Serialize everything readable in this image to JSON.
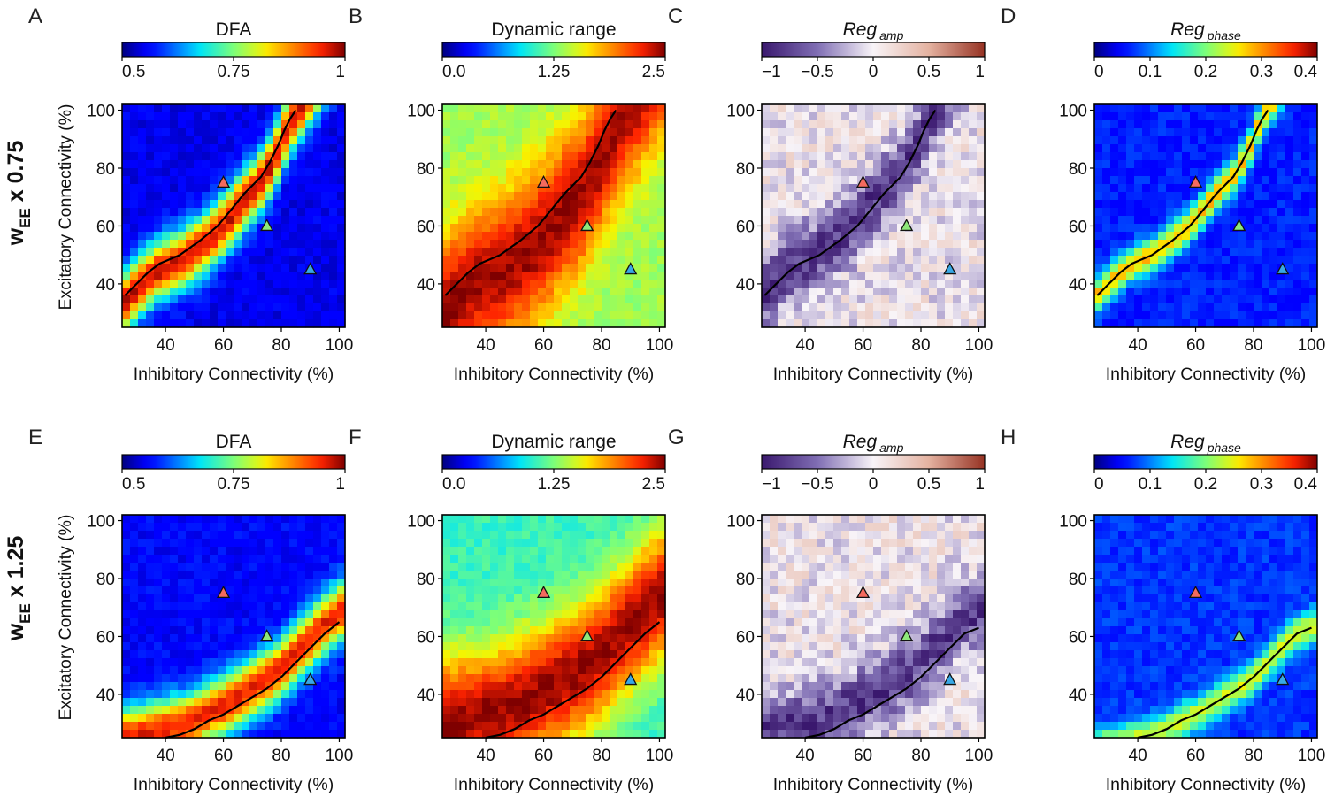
{
  "row_labels": [
    {
      "main": "w",
      "sub": "EE",
      "suffix": " x 0.75"
    },
    {
      "main": "w",
      "sub": "EE",
      "suffix": " x 1.25"
    }
  ],
  "colors": {
    "red_marker": "#f46a5e",
    "green_marker": "#8ee87a",
    "blue_marker": "#38a8e6",
    "boundary_line": "#000000"
  },
  "chart_data": [
    {
      "panel": "A",
      "type": "heatmap",
      "title": "DFA",
      "title_italic": false,
      "title_sub": "",
      "colormap": "jet",
      "cmin": 0.5,
      "cmax": 1,
      "colorbar_ticks": [
        0.5,
        0.75,
        1
      ],
      "colorbar_tick_labels": [
        "0.5",
        "0.75",
        "1"
      ],
      "xlabel": "Inhibitory Connectivity (%)",
      "ylabel": "Excitatory Connectivity (%)",
      "xlim": [
        25,
        102
      ],
      "ylim": [
        25,
        102
      ],
      "xticks": [
        40,
        60,
        80,
        100
      ],
      "yticks": [
        40,
        60,
        80,
        100
      ],
      "background": 0.55,
      "ridge_peak": 0.97,
      "ridge_width": 7,
      "ridge_offset": -2,
      "curve": {
        "x": [
          26,
          30,
          34,
          38,
          45,
          52,
          58,
          63,
          67,
          70,
          73,
          76,
          79,
          81,
          83,
          85
        ],
        "y": [
          36,
          40,
          44,
          47,
          50,
          55,
          60,
          66,
          71,
          74,
          77,
          82,
          88,
          93,
          97,
          100
        ]
      },
      "markers": [
        {
          "color": "red",
          "x": 60,
          "y": 75
        },
        {
          "color": "green",
          "x": 75,
          "y": 60
        },
        {
          "color": "blue",
          "x": 90,
          "y": 45
        }
      ]
    },
    {
      "panel": "B",
      "type": "heatmap",
      "title": "Dynamic range",
      "title_italic": false,
      "title_sub": "",
      "colormap": "jet",
      "cmin": 0,
      "cmax": 2.5,
      "colorbar_ticks": [
        0,
        1.25,
        2.5
      ],
      "colorbar_tick_labels": [
        "0.0",
        "1.25",
        "2.5"
      ],
      "xlabel": "Inhibitory Connectivity (%)",
      "ylabel": "",
      "xlim": [
        25,
        102
      ],
      "ylim": [
        25,
        102
      ],
      "xticks": [
        40,
        60,
        80,
        100
      ],
      "yticks": [
        40,
        60,
        80,
        100
      ],
      "background": 1.35,
      "ridge_peak": 2.45,
      "ridge_width": 18,
      "ridge_offset": -6,
      "curve": {
        "x": [
          26,
          30,
          34,
          38,
          45,
          52,
          58,
          63,
          67,
          70,
          73,
          76,
          79,
          81,
          83,
          85
        ],
        "y": [
          36,
          40,
          44,
          47,
          50,
          55,
          60,
          66,
          71,
          74,
          77,
          82,
          88,
          93,
          97,
          100
        ]
      },
      "markers": [
        {
          "color": "red",
          "x": 60,
          "y": 75
        },
        {
          "color": "green",
          "x": 75,
          "y": 60
        },
        {
          "color": "blue",
          "x": 90,
          "y": 45
        }
      ]
    },
    {
      "panel": "C",
      "type": "heatmap",
      "title": "Reg",
      "title_italic": true,
      "title_sub": "amp",
      "colormap": "diverging",
      "cmin": -1,
      "cmax": 1,
      "colorbar_ticks": [
        -1,
        -0.5,
        0,
        0.5,
        1
      ],
      "colorbar_tick_labels": [
        "−1",
        "−0.5",
        "0",
        "0.5",
        "1"
      ],
      "xlabel": "Inhibitory Connectivity (%)",
      "ylabel": "",
      "xlim": [
        25,
        102
      ],
      "ylim": [
        25,
        102
      ],
      "xticks": [
        40,
        60,
        80,
        100
      ],
      "yticks": [
        40,
        60,
        80,
        100
      ],
      "background": 0.0,
      "ridge_peak": -0.85,
      "ridge_width": 8,
      "ridge_offset": 1,
      "curve": {
        "x": [
          26,
          30,
          34,
          38,
          45,
          52,
          58,
          63,
          67,
          70,
          73,
          76,
          79,
          81,
          83,
          85
        ],
        "y": [
          36,
          40,
          44,
          47,
          50,
          55,
          60,
          66,
          71,
          74,
          77,
          82,
          88,
          93,
          97,
          100
        ]
      },
      "markers": [
        {
          "color": "red",
          "x": 60,
          "y": 75
        },
        {
          "color": "green",
          "x": 75,
          "y": 60
        },
        {
          "color": "blue",
          "x": 90,
          "y": 45
        }
      ]
    },
    {
      "panel": "D",
      "type": "heatmap",
      "title": "Reg",
      "title_italic": true,
      "title_sub": "phase",
      "colormap": "jet",
      "cmin": 0,
      "cmax": 0.4,
      "colorbar_ticks": [
        0,
        0.1,
        0.2,
        0.3,
        0.4
      ],
      "colorbar_tick_labels": [
        "0",
        "0.1",
        "0.2",
        "0.3",
        "0.4"
      ],
      "xlabel": "Inhibitory Connectivity (%)",
      "ylabel": "",
      "xlim": [
        25,
        102
      ],
      "ylim": [
        25,
        102
      ],
      "xticks": [
        40,
        60,
        80,
        100
      ],
      "yticks": [
        40,
        60,
        80,
        100
      ],
      "background": 0.06,
      "ridge_peak": 0.28,
      "ridge_width": 4,
      "ridge_offset": 0,
      "curve": {
        "x": [
          26,
          30,
          34,
          38,
          45,
          52,
          58,
          63,
          67,
          70,
          73,
          76,
          79,
          81,
          83,
          85
        ],
        "y": [
          36,
          40,
          44,
          47,
          50,
          55,
          60,
          66,
          71,
          74,
          77,
          82,
          88,
          93,
          97,
          100
        ]
      },
      "markers": [
        {
          "color": "red",
          "x": 60,
          "y": 75
        },
        {
          "color": "green",
          "x": 75,
          "y": 60
        },
        {
          "color": "blue",
          "x": 90,
          "y": 45
        }
      ]
    },
    {
      "panel": "E",
      "type": "heatmap",
      "title": "DFA",
      "title_italic": false,
      "title_sub": "",
      "colormap": "jet",
      "cmin": 0.5,
      "cmax": 1,
      "colorbar_ticks": [
        0.5,
        0.75,
        1
      ],
      "colorbar_tick_labels": [
        "0.5",
        "0.75",
        "1"
      ],
      "xlabel": "Inhibitory Connectivity (%)",
      "ylabel": "Excitatory Connectivity (%)",
      "xlim": [
        25,
        102
      ],
      "ylim": [
        25,
        102
      ],
      "xticks": [
        40,
        60,
        80,
        100
      ],
      "yticks": [
        40,
        60,
        80,
        100
      ],
      "background": 0.56,
      "ridge_peak": 0.95,
      "ridge_width": 7,
      "ridge_offset": 3,
      "curve": {
        "x": [
          40,
          45,
          50,
          55,
          60,
          65,
          70,
          75,
          80,
          85,
          90,
          95,
          100
        ],
        "y": [
          25,
          26,
          28,
          31,
          33,
          36,
          39,
          42,
          46,
          51,
          56,
          61,
          65
        ]
      },
      "markers": [
        {
          "color": "red",
          "x": 60,
          "y": 75
        },
        {
          "color": "green",
          "x": 75,
          "y": 60
        },
        {
          "color": "blue",
          "x": 90,
          "y": 45
        }
      ]
    },
    {
      "panel": "F",
      "type": "heatmap",
      "title": "Dynamic range",
      "title_italic": false,
      "title_sub": "",
      "colormap": "jet",
      "cmin": 0,
      "cmax": 2.5,
      "colorbar_ticks": [
        0,
        1.25,
        2.5
      ],
      "colorbar_tick_labels": [
        "0.0",
        "1.25",
        "2.5"
      ],
      "xlabel": "Inhibitory Connectivity (%)",
      "ylabel": "",
      "xlim": [
        25,
        102
      ],
      "ylim": [
        25,
        102
      ],
      "xticks": [
        40,
        60,
        80,
        100
      ],
      "yticks": [
        40,
        60,
        80,
        100
      ],
      "background": 1.05,
      "ridge_peak": 2.45,
      "ridge_width": 16,
      "ridge_offset": 8,
      "curve": {
        "x": [
          40,
          45,
          50,
          55,
          60,
          65,
          70,
          75,
          80,
          85,
          90,
          95,
          100
        ],
        "y": [
          25,
          26,
          28,
          31,
          33,
          36,
          39,
          42,
          46,
          51,
          56,
          61,
          65
        ]
      },
      "markers": [
        {
          "color": "red",
          "x": 60,
          "y": 75
        },
        {
          "color": "green",
          "x": 75,
          "y": 60
        },
        {
          "color": "blue",
          "x": 90,
          "y": 45
        }
      ]
    },
    {
      "panel": "G",
      "type": "heatmap",
      "title": "Reg",
      "title_italic": true,
      "title_sub": "amp",
      "colormap": "diverging",
      "cmin": -1,
      "cmax": 1,
      "colorbar_ticks": [
        -1,
        -0.5,
        0,
        0.5,
        1
      ],
      "colorbar_tick_labels": [
        "−1",
        "−0.5",
        "0",
        "0.5",
        "1"
      ],
      "xlabel": "Inhibitory Connectivity (%)",
      "ylabel": "",
      "xlim": [
        25,
        102
      ],
      "ylim": [
        25,
        102
      ],
      "xticks": [
        40,
        60,
        80,
        100
      ],
      "yticks": [
        40,
        60,
        80,
        100
      ],
      "background": 0.0,
      "ridge_peak": -0.8,
      "ridge_width": 8,
      "ridge_offset": 5,
      "curve": {
        "x": [
          40,
          45,
          50,
          55,
          60,
          65,
          70,
          75,
          80,
          85,
          90,
          95,
          100
        ],
        "y": [
          25,
          26,
          28,
          31,
          33,
          36,
          39,
          42,
          46,
          51,
          56,
          61,
          63
        ]
      },
      "markers": [
        {
          "color": "red",
          "x": 60,
          "y": 75
        },
        {
          "color": "green",
          "x": 75,
          "y": 60
        },
        {
          "color": "blue",
          "x": 90,
          "y": 45
        }
      ]
    },
    {
      "panel": "H",
      "type": "heatmap",
      "title": "Reg",
      "title_italic": true,
      "title_sub": "phase",
      "colormap": "jet",
      "cmin": 0,
      "cmax": 0.4,
      "colorbar_ticks": [
        0,
        0.1,
        0.2,
        0.3,
        0.4
      ],
      "colorbar_tick_labels": [
        "0",
        "0.1",
        "0.2",
        "0.3",
        "0.4"
      ],
      "xlabel": "Inhibitory Connectivity (%)",
      "ylabel": "",
      "xlim": [
        25,
        102
      ],
      "ylim": [
        25,
        102
      ],
      "xticks": [
        40,
        60,
        80,
        100
      ],
      "yticks": [
        40,
        60,
        80,
        100
      ],
      "background": 0.07,
      "ridge_peak": 0.24,
      "ridge_width": 4,
      "ridge_offset": 0,
      "curve": {
        "x": [
          40,
          45,
          50,
          55,
          60,
          65,
          70,
          75,
          80,
          85,
          90,
          95,
          100
        ],
        "y": [
          25,
          26,
          28,
          31,
          33,
          36,
          39,
          42,
          46,
          51,
          56,
          61,
          63
        ]
      },
      "markers": [
        {
          "color": "red",
          "x": 60,
          "y": 75
        },
        {
          "color": "green",
          "x": 75,
          "y": 60
        },
        {
          "color": "blue",
          "x": 90,
          "y": 45
        }
      ]
    }
  ]
}
